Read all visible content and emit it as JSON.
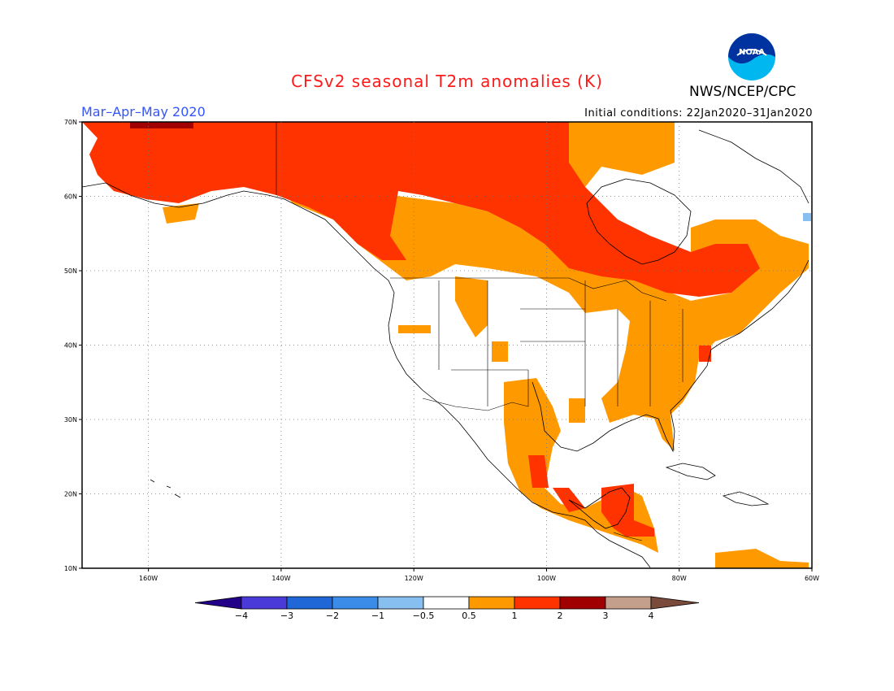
{
  "title": "CFSv2 seasonal T2m anomalies (K)",
  "period": "Mar–Apr–May 2020",
  "initial_conditions": "Initial conditions: 22Jan2020–31Jan2020",
  "organization": "NWS/NCEP/CPC",
  "logo_text": "NOAA",
  "lat_labels": [
    "70N",
    "60N",
    "50N",
    "40N",
    "30N",
    "20N",
    "10N"
  ],
  "lon_labels": [
    "160W",
    "140W",
    "120W",
    "100W",
    "80W",
    "60W"
  ],
  "colorbar": {
    "ticks": [
      "−4",
      "−3",
      "−2",
      "−1",
      "−0.5",
      "0.5",
      "1",
      "2",
      "3",
      "4"
    ],
    "colors": [
      "#230088",
      "#4a3ad8",
      "#1f66d6",
      "#3a8ce8",
      "#86bff0",
      "#ffffff",
      "#ff9900",
      "#ff3300",
      "#a10000",
      "#c4a08c",
      "#7a4a3a"
    ]
  },
  "colors": {
    "anom_0_5_1": "#ff9900",
    "anom_1_2": "#ff3300",
    "anom_2_3": "#a10000",
    "anom_neg": "#86bff0"
  }
}
